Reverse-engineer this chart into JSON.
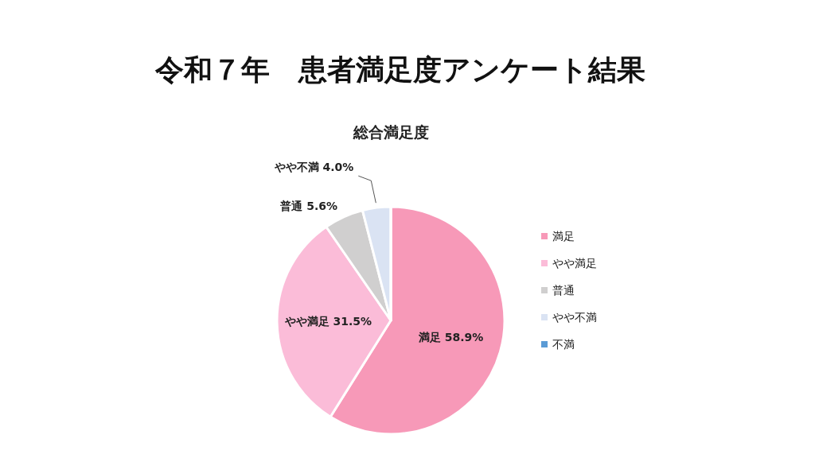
{
  "chart_data": {
    "type": "pie",
    "title": "令和７年　患者満足度アンケート結果",
    "subtitle": "総合満足度",
    "categories": [
      "満足",
      "やや満足",
      "普通",
      "やや不満",
      "不満"
    ],
    "values": [
      58.9,
      31.5,
      5.6,
      4.0,
      0
    ],
    "value_labels": [
      "58.9%",
      "31.5%",
      "5.6%",
      "4.0%",
      null
    ],
    "colors": [
      "#f799b8",
      "#fbbcd8",
      "#d0cfcf",
      "#dae3f3",
      "#5b9bd5"
    ],
    "legend": "right"
  }
}
